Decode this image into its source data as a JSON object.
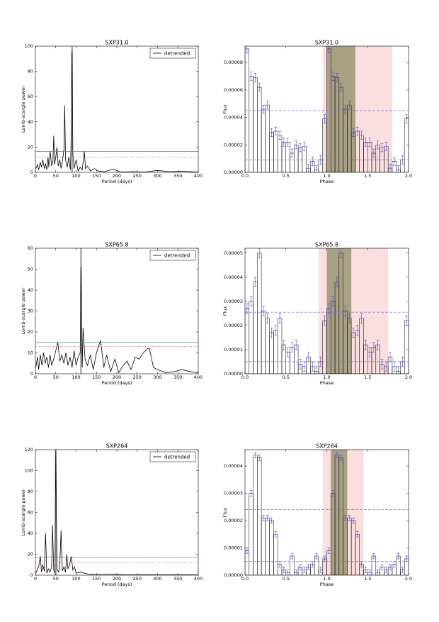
{
  "chart_data": [
    {
      "type": "line",
      "title": "SXP31.0",
      "xlabel": "Period (days)",
      "ylabel": "Lomb-scargle power",
      "xlim": [
        0,
        400
      ],
      "ylim": [
        0,
        100
      ],
      "xticks": [
        0,
        50,
        100,
        150,
        200,
        250,
        300,
        350,
        400
      ],
      "yticks": [
        0,
        20,
        40,
        60,
        80,
        100
      ],
      "x": [
        1,
        5,
        8,
        12,
        15,
        18,
        22,
        25,
        28,
        31,
        33,
        36,
        40,
        43,
        45,
        47,
        50,
        53,
        56,
        60,
        63,
        66,
        70,
        72,
        74,
        78,
        82,
        86,
        88,
        90,
        92,
        95,
        100,
        105,
        110,
        115,
        120,
        123,
        128,
        135,
        145,
        155,
        170,
        190,
        210,
        240,
        270,
        300,
        330,
        360,
        400
      ],
      "series": [
        {
          "name": "detrended",
          "color": "#000000",
          "values": [
            3,
            6,
            2,
            8,
            4,
            10,
            3,
            7,
            2,
            12,
            4,
            17,
            5,
            9,
            29,
            6,
            12,
            20,
            5,
            10,
            3,
            8,
            18,
            53,
            10,
            4,
            12,
            2,
            30,
            96,
            15,
            3,
            10,
            1,
            4,
            2,
            17,
            3,
            5,
            1,
            3,
            1,
            0.5,
            2.5,
            0.3,
            0.5,
            0.3,
            1.5,
            0.5,
            1,
            0.2
          ]
        }
      ],
      "thresholds": [
        {
          "value": 16.5,
          "color": "#3f8f7f",
          "dash": false
        },
        {
          "value": 12,
          "color": "#e05050",
          "dash": true
        }
      ],
      "marker_x": 90,
      "legend": "upper right"
    },
    {
      "type": "histogram",
      "title": "SXP31.0",
      "xlabel": "Phase",
      "ylabel": "Flux",
      "xlim": [
        0,
        2
      ],
      "ylim": [
        0,
        9.2e-05
      ],
      "xticks": [
        {
          "value": 0,
          "label": "0.0"
        },
        0.5,
        {
          "value": 1,
          "label": "1.0"
        },
        1.5,
        {
          "value": 2,
          "label": "2.0"
        }
      ],
      "yticks": [
        {
          "value": 0,
          "label": "0.00000"
        },
        2e-05,
        4e-05,
        6e-05,
        8e-05
      ],
      "bins": [
        0,
        0.05,
        0.1,
        0.15,
        0.2,
        0.25,
        0.3,
        0.35,
        0.4,
        0.45,
        0.5,
        0.55,
        0.6,
        0.65,
        0.7,
        0.75,
        0.8,
        0.85,
        0.9,
        0.95,
        1,
        1.05,
        1.1,
        1.15,
        1.2,
        1.25,
        1.3,
        1.35,
        1.4,
        1.45,
        1.5,
        1.55,
        1.6,
        1.65,
        1.7,
        1.75,
        1.8,
        1.85,
        1.9,
        1.95,
        2
      ],
      "values": [
        9e-05,
        7e-05,
        6.9e-05,
        6.2e-05,
        4.6e-05,
        4.9e-05,
        2.9e-05,
        3e-05,
        2.7e-05,
        2.2e-05,
        2.2e-05,
        1.4e-05,
        2e-05,
        1.8e-05,
        1.9e-05,
        3e-06,
        8e-06,
        2e-06,
        9e-06,
        3.9e-05,
        9e-05,
        7e-05,
        6.9e-05,
        6.2e-05,
        4.6e-05,
        4.9e-05,
        2.9e-05,
        3e-05,
        2.7e-05,
        2.2e-05,
        2.2e-05,
        1.4e-05,
        2e-05,
        1.8e-05,
        1.9e-05,
        3e-06,
        8e-06,
        2e-06,
        9e-06,
        3.9e-05
      ],
      "error": 3e-06,
      "color": "#000000",
      "error_color": "#4a4ad0",
      "hlines": [
        4.5e-05,
        9e-06
      ],
      "hline_color": "#6a6af0",
      "spans": [
        {
          "range": [
            0.95,
            1.8
          ],
          "color": "#f8c8c8"
        },
        {
          "range": [
            1,
            1.35
          ],
          "color": "#8c8c66"
        }
      ]
    },
    {
      "type": "line",
      "title": "SXP65.8",
      "xlabel": "Period (days)",
      "ylabel": "Lomb-scargle power",
      "xlim": [
        0,
        400
      ],
      "ylim": [
        0,
        60
      ],
      "xticks": [
        0,
        50,
        100,
        150,
        200,
        250,
        300,
        350,
        400
      ],
      "yticks": [
        0,
        10,
        20,
        30,
        40,
        50,
        60
      ],
      "x": [
        1,
        5,
        8,
        12,
        16,
        20,
        24,
        28,
        32,
        36,
        40,
        45,
        50,
        55,
        60,
        65,
        70,
        75,
        80,
        85,
        90,
        95,
        100,
        105,
        110,
        112,
        115,
        117,
        122,
        128,
        135,
        142,
        150,
        160,
        168,
        175,
        185,
        195,
        205,
        215,
        225,
        235,
        245,
        255,
        265,
        275,
        280,
        290,
        300,
        320,
        340,
        360,
        380,
        400
      ],
      "series": [
        {
          "name": "detrended",
          "color": "#000000",
          "values": [
            3,
            8,
            2,
            9,
            4,
            10,
            5,
            8,
            3,
            9,
            4,
            7,
            11,
            15,
            6,
            9,
            5,
            10,
            4,
            8,
            3,
            11,
            4,
            8,
            10,
            51,
            3,
            22,
            7,
            4,
            9,
            2,
            10,
            16,
            3,
            9,
            1,
            7,
            0.5,
            4,
            6,
            2,
            8,
            7,
            10,
            12,
            12,
            3,
            2,
            0.5,
            1,
            2,
            1,
            0.5
          ]
        }
      ],
      "thresholds": [
        {
          "value": 15,
          "color": "#3f8f7f",
          "dash": false
        },
        {
          "value": 13,
          "color": "#e05050",
          "dash": true
        }
      ],
      "marker_x": 112,
      "legend": "upper right"
    },
    {
      "type": "histogram",
      "title": "SXP65.8",
      "xlabel": "Phase",
      "ylabel": "Flux",
      "xlim": [
        0,
        2
      ],
      "ylim": [
        0,
        5.2e-05
      ],
      "xticks": [
        {
          "value": 0,
          "label": "0.0"
        },
        0.5,
        {
          "value": 1,
          "label": "1.0"
        },
        1.5,
        {
          "value": 2,
          "label": "2.0"
        }
      ],
      "yticks": [
        {
          "value": 0,
          "label": "0.00000"
        },
        1e-05,
        2e-05,
        3e-05,
        4e-05,
        5e-05
      ],
      "bins": [
        0,
        0.05,
        0.1,
        0.15,
        0.2,
        0.25,
        0.3,
        0.35,
        0.4,
        0.45,
        0.5,
        0.55,
        0.6,
        0.65,
        0.7,
        0.75,
        0.8,
        0.85,
        0.9,
        0.95,
        1,
        1.05,
        1.1,
        1.15,
        1.2,
        1.25,
        1.3,
        1.35,
        1.4,
        1.45,
        1.5,
        1.55,
        1.6,
        1.65,
        1.7,
        1.75,
        1.8,
        1.85,
        1.9,
        1.95,
        2
      ],
      "values": [
        2.7e-05,
        3e-05,
        3.8e-05,
        5e-05,
        2.6e-05,
        2.3e-05,
        1.7e-05,
        1.8e-05,
        2.3e-05,
        1.2e-05,
        9e-06,
        1.1e-05,
        1.2e-05,
        4e-06,
        3e-06,
        7e-06,
        3e-06,
        1e-06,
        5e-06,
        2.2e-05,
        2.7e-05,
        3e-05,
        3.8e-05,
        5e-05,
        2.6e-05,
        2.3e-05,
        1.7e-05,
        1.8e-05,
        2.3e-05,
        1.2e-05,
        9e-06,
        1.1e-05,
        1.2e-05,
        4e-06,
        3e-06,
        7e-06,
        3e-06,
        1e-06,
        5e-06,
        2.2e-05
      ],
      "error": 2e-06,
      "color": "#000000",
      "error_color": "#4a4ad0",
      "hlines": [
        2.55e-05,
        5e-06
      ],
      "hline_color": "#6a6af0",
      "spans": [
        {
          "range": [
            0.9,
            1.75
          ],
          "color": "#f8c8c8"
        },
        {
          "range": [
            1,
            1.3
          ],
          "color": "#8c8c66"
        }
      ]
    },
    {
      "type": "line",
      "title": "SXP264",
      "xlabel": "Period (days)",
      "ylabel": "Lomb-scargle power",
      "xlim": [
        0,
        400
      ],
      "ylim": [
        0,
        120
      ],
      "xticks": [
        0,
        50,
        100,
        150,
        200,
        250,
        300,
        350,
        400
      ],
      "yticks": [
        0,
        20,
        40,
        60,
        80,
        100,
        120
      ],
      "x": [
        1,
        4,
        8,
        12,
        15,
        18,
        22,
        25,
        28,
        32,
        36,
        40,
        42,
        45,
        48,
        50,
        53,
        57,
        60,
        63,
        66,
        70,
        74,
        77,
        80,
        84,
        88,
        92,
        96,
        100,
        110,
        120,
        130,
        150,
        180,
        220,
        260,
        300,
        350,
        400
      ],
      "series": [
        {
          "name": "detrended",
          "color": "#000000",
          "values": [
            2,
            5,
            8,
            18,
            3,
            10,
            4,
            40,
            2,
            6,
            3,
            8,
            48,
            5,
            2,
            118,
            6,
            3,
            10,
            43,
            4,
            8,
            3,
            20,
            6,
            10,
            18,
            5,
            8,
            2,
            3,
            2,
            1,
            0.5,
            1,
            0.3,
            0.5,
            0.3,
            0.5,
            0.2
          ]
        }
      ],
      "thresholds": [
        {
          "value": 17,
          "color": "#3f8f7f",
          "dash": false
        },
        {
          "value": 12,
          "color": "#e05050",
          "dash": true
        }
      ],
      "marker_x": 50,
      "legend": "upper right"
    },
    {
      "type": "histogram",
      "title": "SXP264",
      "xlabel": "Phase",
      "ylabel": "Flux",
      "xlim": [
        0,
        2
      ],
      "ylim": [
        0,
        4.6e-05
      ],
      "xticks": [
        {
          "value": 0,
          "label": "0.0"
        },
        0.5,
        {
          "value": 1,
          "label": "1.0"
        },
        1.5,
        {
          "value": 2,
          "label": "2.0"
        }
      ],
      "yticks": [
        {
          "value": 0,
          "label": "0.00000"
        },
        1e-05,
        2e-05,
        3e-05,
        4e-05
      ],
      "bins": [
        0,
        0.05,
        0.1,
        0.15,
        0.2,
        0.25,
        0.3,
        0.35,
        0.4,
        0.45,
        0.5,
        0.55,
        0.6,
        0.65,
        0.7,
        0.75,
        0.8,
        0.85,
        0.9,
        0.95,
        1,
        1.05,
        1.1,
        1.15,
        1.2,
        1.25,
        1.3,
        1.35,
        1.4,
        1.45,
        1.5,
        1.55,
        1.6,
        1.65,
        1.7,
        1.75,
        1.8,
        1.85,
        1.9,
        1.95,
        2
      ],
      "values": [
        9e-06,
        3e-05,
        4.4e-05,
        4.3e-05,
        2.1e-05,
        2.1e-05,
        2e-05,
        1.5e-05,
        4e-06,
        2e-06,
        1e-06,
        7e-06,
        1e-06,
        3e-06,
        2e-06,
        3e-06,
        4e-06,
        7e-06,
        2e-06,
        6e-06,
        9e-06,
        3e-05,
        4.4e-05,
        4.3e-05,
        2.1e-05,
        2.1e-05,
        2e-05,
        1.5e-05,
        4e-06,
        2e-06,
        1e-06,
        7e-06,
        1e-06,
        3e-06,
        2e-06,
        3e-06,
        4e-06,
        7e-06,
        2e-06,
        6e-06
      ],
      "error": 1e-06,
      "color": "#000000",
      "error_color": "#4a4ad0",
      "hlines": [
        2.4e-05,
        5e-06
      ],
      "hline_color": "#6a6af0",
      "spans": [
        {
          "range": [
            0.95,
            1.45
          ],
          "color": "#f8c8c8"
        },
        {
          "range": [
            1.05,
            1.25
          ],
          "color": "#8c8c66"
        }
      ]
    }
  ]
}
